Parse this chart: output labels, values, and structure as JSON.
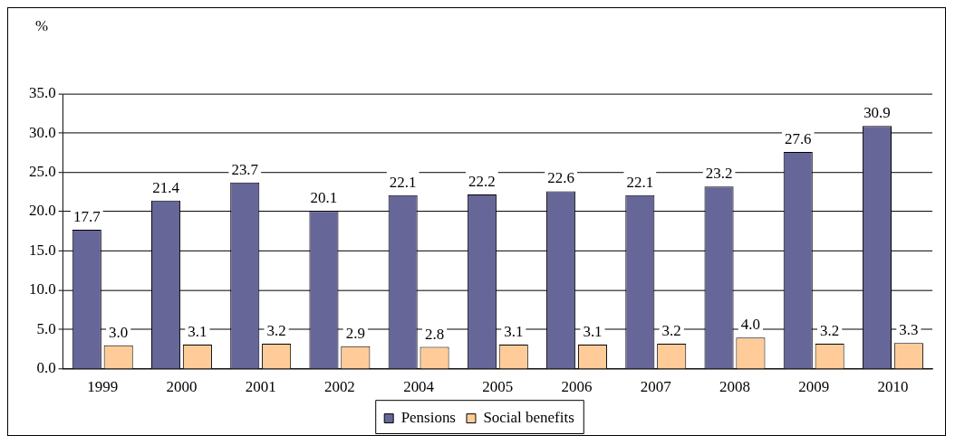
{
  "chart_data": {
    "type": "bar",
    "ylabel": "%",
    "categories": [
      "1999",
      "2000",
      "2001",
      "2002",
      "2004",
      "2005",
      "2006",
      "2007",
      "2008",
      "2009",
      "2010"
    ],
    "series": [
      {
        "name": "Pensions",
        "color": "#666699",
        "values": [
          17.7,
          21.4,
          23.7,
          20.1,
          22.1,
          22.2,
          22.6,
          22.1,
          23.2,
          27.6,
          30.9
        ],
        "value_labels": [
          "17.7",
          "21.4",
          "23.7",
          "20.1",
          "22.1",
          "22.2",
          "22.6",
          "22.1",
          "23.2",
          "27.6",
          "30.9"
        ]
      },
      {
        "name": "Social benefits",
        "color": "#ffcc99",
        "values": [
          3.0,
          3.1,
          3.2,
          2.9,
          2.8,
          3.1,
          3.1,
          3.2,
          4.0,
          3.2,
          3.3
        ],
        "value_labels": [
          "3.0",
          "3.1",
          "3.2",
          "2.9",
          "2.8",
          "3.1",
          "3.1",
          "3.2",
          "4.0",
          "3.2",
          "3.3"
        ]
      }
    ],
    "ylim": [
      0,
      35
    ],
    "yticks": [
      {
        "value": 0,
        "label": "0.0"
      },
      {
        "value": 5,
        "label": "5.0"
      },
      {
        "value": 10,
        "label": "10.0"
      },
      {
        "value": 15,
        "label": "15.0"
      },
      {
        "value": 20,
        "label": "20.0"
      },
      {
        "value": 25,
        "label": "25.0"
      },
      {
        "value": 30,
        "label": "30.0"
      },
      {
        "value": 35,
        "label": "35.0"
      }
    ],
    "grid": "y",
    "legend": "bottom"
  }
}
